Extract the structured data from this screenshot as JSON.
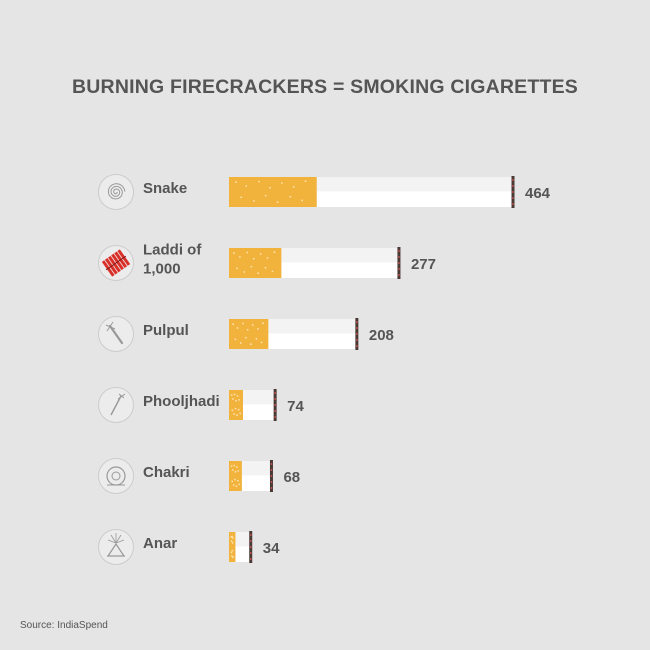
{
  "title": "BURNING FIRECRACKERS = SMOKING CIGARETTES",
  "source": "Source: IndiaSpend",
  "colors": {
    "background": "#e5e5e5",
    "filter": "#f2b33d",
    "filter_dots": "#fbe3b0",
    "paper": "#ffffff",
    "paper_top": "#f3f3f3",
    "ash": "#4a3a36",
    "ember": "#c0504d",
    "text": "#555555",
    "icon_circle": "#ececec",
    "icon_stroke": "#999999",
    "laddi_red": "#d9302a"
  },
  "chart_data": {
    "type": "bar",
    "categories": [
      "Snake",
      "Laddi of 1,000",
      "Pulpul",
      "Phooljhadi",
      "Chakri",
      "Anar"
    ],
    "category_lines": [
      [
        "Snake"
      ],
      [
        "Laddi of",
        "1,000"
      ],
      [
        "Pulpul"
      ],
      [
        "Phooljhadi"
      ],
      [
        "Chakri"
      ],
      [
        "Anar"
      ]
    ],
    "icons": [
      "spiral-icon",
      "firecracker-string-icon",
      "pulpul-stick-icon",
      "sparkler-icon",
      "chakri-wheel-icon",
      "anar-cone-icon"
    ],
    "values": [
      464,
      277,
      208,
      74,
      68,
      34
    ],
    "value_labels": [
      "464",
      "277",
      "208",
      "74",
      "68",
      "34"
    ],
    "xlim": [
      0,
      464
    ],
    "grid": false,
    "legend": "none"
  }
}
